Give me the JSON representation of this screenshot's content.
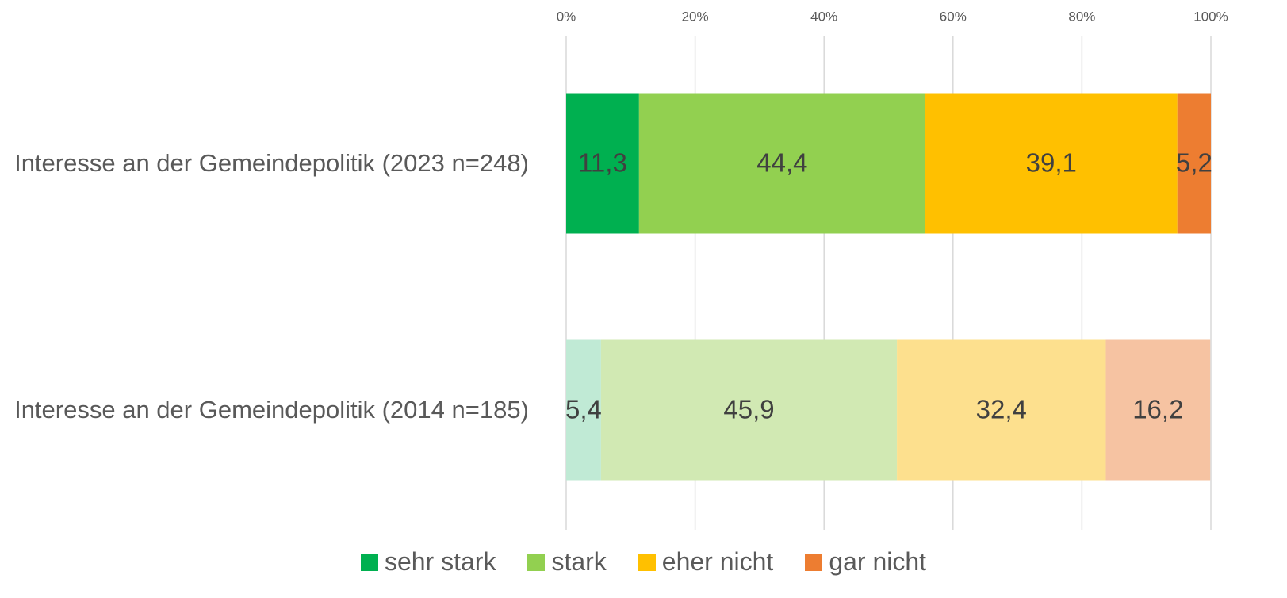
{
  "chart_data": {
    "type": "stacked-bar-horizontal",
    "categories": [
      "Interesse an der Gemeindepolitik (2023 n=248)",
      "Interesse an der Gemeindepolitik (2014 n=185)"
    ],
    "series": [
      {
        "name": "sehr stark",
        "color": "#00b050",
        "colors": [
          "#00b050",
          "#c0ead5"
        ],
        "values": [
          11.3,
          5.4
        ],
        "value_labels": [
          "11,3",
          "5,4"
        ]
      },
      {
        "name": "stark",
        "color": "#92d050",
        "colors": [
          "#92d050",
          "#d1e9b3"
        ],
        "values": [
          44.4,
          45.9
        ],
        "value_labels": [
          "44,4",
          "45,9"
        ]
      },
      {
        "name": "eher nicht",
        "color": "#ffc000",
        "colors": [
          "#ffc000",
          "#fde08e"
        ],
        "values": [
          39.1,
          32.4
        ],
        "value_labels": [
          "39,1",
          "32,4"
        ]
      },
      {
        "name": "gar nicht",
        "color": "#ed7d31",
        "colors": [
          "#ed7d31",
          "#f6c3a2"
        ],
        "values": [
          5.2,
          16.2
        ],
        "value_labels": [
          "5,2",
          "16,2"
        ]
      }
    ],
    "xlim": [
      0,
      100
    ],
    "xticks": [
      {
        "value": 0,
        "label": "0%"
      },
      {
        "value": 20,
        "label": "20%"
      },
      {
        "value": 40,
        "label": "40%"
      },
      {
        "value": 60,
        "label": "60%"
      },
      {
        "value": 80,
        "label": "80%"
      },
      {
        "value": 100,
        "label": "100%"
      }
    ],
    "grid": true,
    "legend": "bottom"
  }
}
